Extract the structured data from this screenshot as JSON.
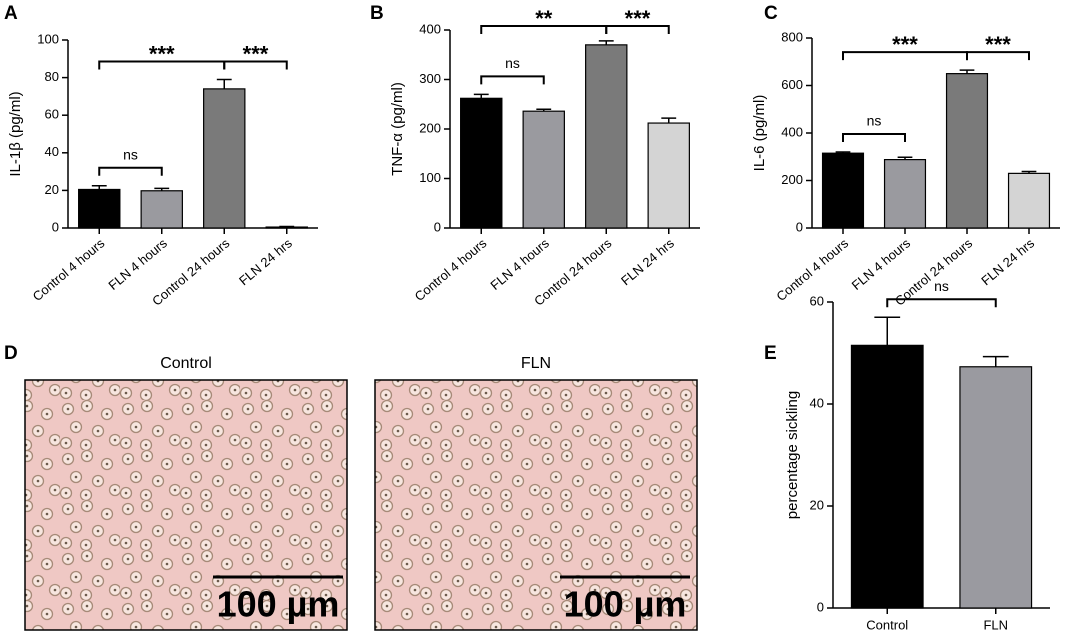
{
  "panel_labels": [
    "A",
    "B",
    "C",
    "D",
    "E"
  ],
  "micrographs": [
    {
      "title": "Control",
      "scale_bar": "100 µm"
    },
    {
      "title": "FLN",
      "scale_bar": "100 µm"
    }
  ],
  "chart_data": [
    {
      "type": "bar",
      "ylabel": "IL-1β (pg/ml)",
      "categories": [
        "Control 4 hours",
        "FLN 4 hours",
        "Control 24 hours",
        "FLN 24 hrs"
      ],
      "values": [
        20.5,
        19.8,
        74,
        0.5
      ],
      "errors": [
        2,
        1.3,
        5,
        0.3
      ],
      "colors": [
        "#000000",
        "#9a9a9f",
        "#7a7a7a",
        "#d4d4d4"
      ],
      "ylim": [
        0,
        100
      ],
      "yticks": [
        0,
        20,
        40,
        60,
        80,
        100
      ],
      "annotations": [
        {
          "label": "ns",
          "between": [
            0,
            1
          ]
        },
        {
          "label": "***",
          "between": [
            0,
            2
          ]
        },
        {
          "label": "***",
          "between": [
            2,
            3
          ]
        }
      ]
    },
    {
      "type": "bar",
      "ylabel": "TNF-α  (pg/ml)",
      "categories": [
        "Control 4 hours",
        "FLN 4 hours",
        "Control 24 hours",
        "FLN 24 hrs"
      ],
      "values": [
        262,
        236,
        370,
        212
      ],
      "errors": [
        8,
        4,
        8,
        10
      ],
      "colors": [
        "#000000",
        "#9a9a9f",
        "#7a7a7a",
        "#d4d4d4"
      ],
      "ylim": [
        0,
        400
      ],
      "yticks": [
        0,
        100,
        200,
        300,
        400
      ],
      "annotations": [
        {
          "label": "ns",
          "between": [
            0,
            1
          ]
        },
        {
          "label": "**",
          "between": [
            0,
            2
          ]
        },
        {
          "label": "***",
          "between": [
            2,
            3
          ]
        }
      ]
    },
    {
      "type": "bar",
      "ylabel": "IL-6 (pg/ml)",
      "categories": [
        "Control 4 hours",
        "FLN 4 hours",
        "Control 24 hours",
        "FLN 24 hrs"
      ],
      "values": [
        315,
        288,
        650,
        230
      ],
      "errors": [
        5,
        10,
        15,
        8
      ],
      "colors": [
        "#000000",
        "#9a9a9f",
        "#7a7a7a",
        "#d4d4d4"
      ],
      "ylim": [
        0,
        800
      ],
      "yticks": [
        0,
        200,
        400,
        600,
        800
      ],
      "annotations": [
        {
          "label": "ns",
          "between": [
            0,
            1
          ]
        },
        {
          "label": "***",
          "between": [
            0,
            2
          ]
        },
        {
          "label": "***",
          "between": [
            2,
            3
          ]
        }
      ]
    },
    {
      "type": "bar",
      "ylabel": "percentage sickling",
      "categories": [
        "Control",
        "FLN"
      ],
      "values": [
        51.5,
        47.3
      ],
      "errors": [
        5.5,
        2
      ],
      "colors": [
        "#000000",
        "#9a9aa0"
      ],
      "ylim": [
        0,
        60
      ],
      "yticks": [
        0,
        20,
        40,
        60
      ],
      "annotations": [
        {
          "label": "ns",
          "between": [
            0,
            1
          ]
        }
      ]
    }
  ]
}
